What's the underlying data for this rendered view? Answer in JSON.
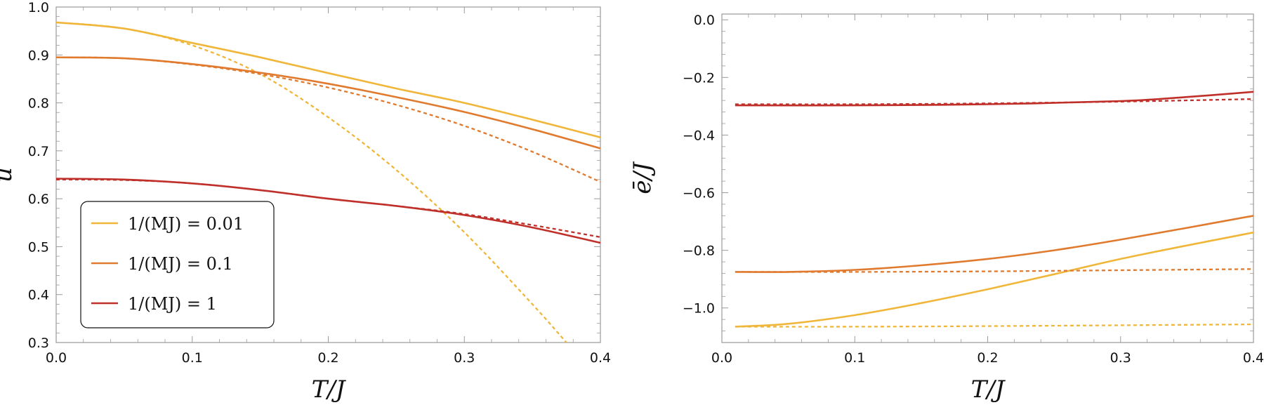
{
  "colors": {
    "c001": "#f0b63a",
    "c01": "#e07a2e",
    "c1": "#c0302a",
    "frame": "#9a9a9a"
  },
  "chart_data": [
    {
      "type": "line",
      "xlabel": "T/J",
      "ylabel": "u",
      "xlim": [
        0,
        0.4
      ],
      "ylim": [
        0.3,
        1.0
      ],
      "xticks": [
        "0.0",
        "0.1",
        "0.2",
        "0.3",
        "0.4"
      ],
      "yticks": [
        "0.3",
        "0.4",
        "0.5",
        "0.6",
        "0.7",
        "0.8",
        "0.9",
        "1.0"
      ],
      "legend": {
        "position": "bottom-left",
        "entries": [
          "1/(MJ) = 0.01",
          "1/(MJ) = 0.1",
          "1/(MJ) = 1"
        ]
      },
      "series": [
        {
          "name": "1/(MJ) = 0.01",
          "color": "#f0b63a",
          "style": "solid",
          "x": [
            0,
            0.05,
            0.1,
            0.15,
            0.2,
            0.25,
            0.3,
            0.35,
            0.4
          ],
          "y": [
            0.968,
            0.955,
            0.925,
            0.895,
            0.862,
            0.83,
            0.8,
            0.765,
            0.728
          ]
        },
        {
          "color": "#f0b63a",
          "style": "dashed",
          "x": [
            0,
            0.05,
            0.1,
            0.15,
            0.2,
            0.25,
            0.3,
            0.35,
            0.375
          ],
          "y": [
            0.968,
            0.955,
            0.92,
            0.86,
            0.77,
            0.66,
            0.53,
            0.38,
            0.3
          ]
        },
        {
          "name": "1/(MJ) = 0.1",
          "color": "#e07a2e",
          "style": "solid",
          "x": [
            0,
            0.05,
            0.1,
            0.15,
            0.2,
            0.25,
            0.3,
            0.35,
            0.4
          ],
          "y": [
            0.895,
            0.893,
            0.881,
            0.863,
            0.84,
            0.812,
            0.781,
            0.745,
            0.705
          ]
        },
        {
          "color": "#e07a2e",
          "style": "dashed",
          "x": [
            0,
            0.05,
            0.1,
            0.15,
            0.2,
            0.25,
            0.3,
            0.35,
            0.4
          ],
          "y": [
            0.895,
            0.893,
            0.88,
            0.86,
            0.832,
            0.796,
            0.752,
            0.698,
            0.635
          ]
        },
        {
          "name": "1/(MJ) = 1",
          "color": "#c0302a",
          "style": "solid",
          "x": [
            0,
            0.05,
            0.1,
            0.15,
            0.2,
            0.25,
            0.3,
            0.35,
            0.4
          ],
          "y": [
            0.642,
            0.64,
            0.632,
            0.618,
            0.6,
            0.585,
            0.566,
            0.54,
            0.508
          ]
        },
        {
          "color": "#c0302a",
          "style": "dashed",
          "x": [
            0,
            0.05,
            0.1,
            0.15,
            0.2,
            0.25,
            0.3,
            0.35,
            0.4
          ],
          "y": [
            0.64,
            0.639,
            0.632,
            0.618,
            0.6,
            0.585,
            0.568,
            0.545,
            0.52
          ]
        }
      ]
    },
    {
      "type": "line",
      "xlabel": "T/J",
      "ylabel": "ē/J",
      "xlim": [
        0,
        0.4
      ],
      "ylim": [
        -1.12,
        0.02
      ],
      "xticks": [
        "0.0",
        "0.1",
        "0.2",
        "0.3",
        "0.4"
      ],
      "yticks": [
        "0.0",
        "−0.2",
        "−0.4",
        "−0.6",
        "−0.8",
        "−1.0"
      ],
      "series": [
        {
          "name": "1/(MJ) = 0.01",
          "color": "#f0b63a",
          "style": "solid",
          "x": [
            0.01,
            0.05,
            0.1,
            0.15,
            0.2,
            0.25,
            0.3,
            0.35,
            0.4
          ],
          "y": [
            -1.065,
            -1.055,
            -1.025,
            -0.983,
            -0.935,
            -0.883,
            -0.83,
            -0.783,
            -0.738
          ]
        },
        {
          "color": "#f0b63a",
          "style": "dashed",
          "x": [
            0.01,
            0.1,
            0.2,
            0.3,
            0.4
          ],
          "y": [
            -1.065,
            -1.065,
            -1.063,
            -1.06,
            -1.057
          ]
        },
        {
          "name": "1/(MJ) = 0.1",
          "color": "#e07a2e",
          "style": "solid",
          "x": [
            0.01,
            0.05,
            0.1,
            0.15,
            0.2,
            0.25,
            0.3,
            0.35,
            0.4
          ],
          "y": [
            -0.875,
            -0.875,
            -0.868,
            -0.852,
            -0.83,
            -0.8,
            -0.763,
            -0.722,
            -0.68
          ]
        },
        {
          "color": "#e07a2e",
          "style": "dashed",
          "x": [
            0.01,
            0.1,
            0.2,
            0.3,
            0.4
          ],
          "y": [
            -0.875,
            -0.875,
            -0.873,
            -0.869,
            -0.865
          ]
        },
        {
          "name": "1/(MJ) = 1",
          "color": "#c0302a",
          "style": "solid",
          "x": [
            0.01,
            0.1,
            0.2,
            0.3,
            0.35,
            0.4
          ],
          "y": [
            -0.297,
            -0.297,
            -0.293,
            -0.282,
            -0.268,
            -0.25
          ]
        },
        {
          "color": "#c0302a",
          "style": "dashed",
          "x": [
            0.01,
            0.1,
            0.2,
            0.3,
            0.4
          ],
          "y": [
            -0.293,
            -0.293,
            -0.29,
            -0.284,
            -0.275
          ]
        }
      ]
    }
  ]
}
